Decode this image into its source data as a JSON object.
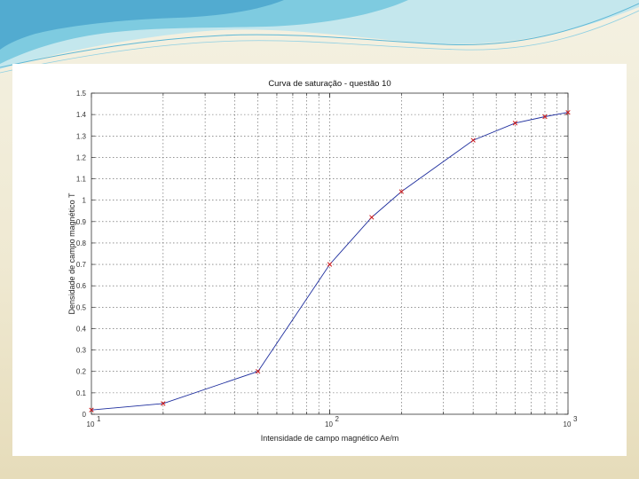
{
  "slide": {
    "accent_colors": [
      "#7ecbe0",
      "#4aa6cc",
      "#bfe5ee",
      "#d9d2ad"
    ]
  },
  "chart_data": {
    "type": "line",
    "title": "Curva de saturação - questão 10",
    "xlabel": "Intensidade de campo magnético Ae/m",
    "ylabel": "Densidade de campo magnético T",
    "x_scale": "log",
    "xlim": [
      10,
      1000
    ],
    "ylim": [
      0,
      1.5
    ],
    "x_tick_labels": [
      {
        "value": 10,
        "base": "10",
        "exp": "1"
      },
      {
        "value": 100,
        "base": "10",
        "exp": "2"
      },
      {
        "value": 1000,
        "base": "10",
        "exp": "3"
      }
    ],
    "y_ticks": [
      0,
      0.1,
      0.2,
      0.3,
      0.4,
      0.5,
      0.6,
      0.7,
      0.8,
      0.9,
      1,
      1.1,
      1.2,
      1.3,
      1.4,
      1.5
    ],
    "y_tick_labels": [
      "0",
      "0.1",
      "0.2",
      "0.3",
      "0.4",
      "0.5",
      "0.6",
      "0.7",
      "0.8",
      "0.9",
      "1",
      "1.1",
      "1.2",
      "1.3",
      "1.4",
      "1.5"
    ],
    "grid": true,
    "series": [
      {
        "x": [
          10,
          20,
          50,
          100,
          150,
          200,
          400,
          600,
          800,
          1000
        ],
        "y": [
          0.02,
          0.05,
          0.2,
          0.7,
          0.92,
          1.04,
          1.28,
          1.36,
          1.39,
          1.41
        ],
        "line_color": "#1f2f9e",
        "marker_color": "#d11a1a",
        "marker": "x"
      }
    ]
  }
}
